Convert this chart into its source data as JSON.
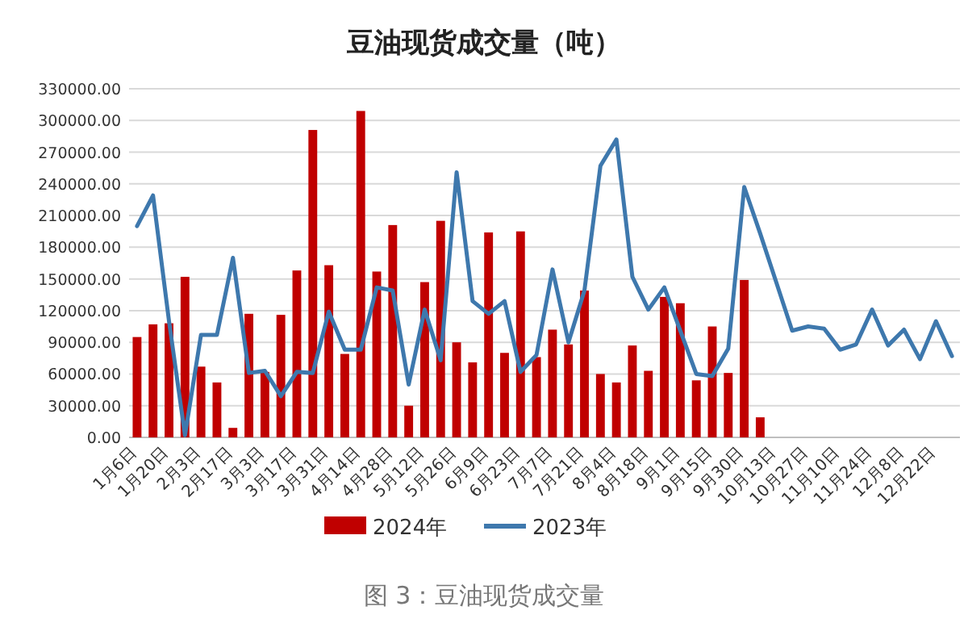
{
  "chart_data": {
    "type": "bar",
    "title": "豆油现货成交量（吨）",
    "categories": [
      "1月6日",
      null,
      "1月20日",
      null,
      "2月3日",
      null,
      "2月17日",
      null,
      "3月3日",
      null,
      "3月17日",
      null,
      "3月31日",
      null,
      "4月14日",
      null,
      "4月28日",
      null,
      "5月12日",
      null,
      "5月26日",
      null,
      "6月9日",
      null,
      "6月23日",
      null,
      "7月7日",
      null,
      "7月21日",
      null,
      "8月4日",
      null,
      "8月18日",
      null,
      "9月1日",
      null,
      "9月15日",
      null,
      "9月30日",
      null,
      "10月13日",
      null,
      "10月27日",
      null,
      "11月10日",
      null,
      "11月24日",
      null,
      "12月8日",
      null,
      "12月22日",
      null
    ],
    "series": [
      {
        "name": "2024年",
        "color": "#c00000",
        "values": [
          95000,
          107000,
          108000,
          152000,
          67000,
          52000,
          9000,
          117000,
          62000,
          116000,
          158000,
          291000,
          163000,
          79000,
          309000,
          157000,
          201000,
          30000,
          147000,
          205000,
          90000,
          71000,
          194000,
          80000,
          195000,
          76000,
          102000,
          88000,
          139000,
          60000,
          52000,
          87000,
          63000,
          133000,
          127000,
          54000,
          105000,
          61000,
          149000,
          19000,
          null,
          null,
          null,
          null,
          null,
          null,
          null,
          null,
          null,
          null,
          null,
          null
        ]
      },
      {
        "name": "2023年",
        "type": "line",
        "color": "#3e78ad",
        "values": [
          200000,
          229000,
          110000,
          2000,
          97000,
          97000,
          170000,
          61000,
          63000,
          39000,
          62000,
          61000,
          119000,
          83000,
          83000,
          142000,
          139000,
          50000,
          121000,
          73000,
          251000,
          129000,
          117000,
          129000,
          62000,
          78000,
          159000,
          90000,
          139000,
          257000,
          282000,
          152000,
          121000,
          142000,
          101000,
          60000,
          58000,
          84000,
          237000,
          193000,
          147000,
          101000,
          105000,
          103000,
          83000,
          88000,
          121000,
          87000,
          102000,
          74000,
          110000,
          77000
        ]
      }
    ],
    "ylim": [
      0,
      330000
    ],
    "yticks": [
      {
        "value": 0,
        "label": "0.00"
      },
      {
        "value": 30000,
        "label": "30000.00"
      },
      {
        "value": 60000,
        "label": "60000.00"
      },
      {
        "value": 90000,
        "label": "90000.00"
      },
      {
        "value": 120000,
        "label": "120000.00"
      },
      {
        "value": 150000,
        "label": "150000.00"
      },
      {
        "value": 180000,
        "label": "180000.00"
      },
      {
        "value": 210000,
        "label": "210000.00"
      },
      {
        "value": 240000,
        "label": "240000.00"
      },
      {
        "value": 270000,
        "label": "270000.00"
      },
      {
        "value": 300000,
        "label": "300000.00"
      },
      {
        "value": 330000,
        "label": "330000.00"
      }
    ],
    "grid": "y",
    "legend": "bottom",
    "annotations": [
      "图 3：豆油现货成交量"
    ]
  }
}
